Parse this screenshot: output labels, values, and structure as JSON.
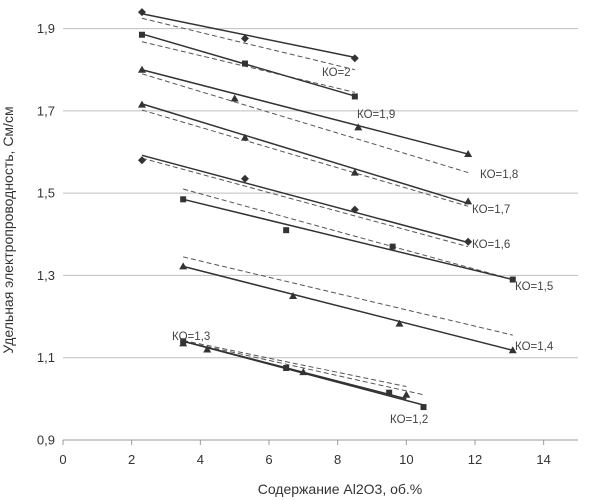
{
  "chart_data": {
    "type": "scatter",
    "xlabel": "Содержание Al2O3, об.%",
    "ylabel": "Удельная электропроводность, См/см",
    "xlim": [
      0,
      15
    ],
    "ylim": [
      0.9,
      1.95
    ],
    "xticks": [
      "0",
      "2",
      "4",
      "6",
      "8",
      "10",
      "12",
      "14"
    ],
    "yticks": [
      "0,9",
      "1,1",
      "1,3",
      "1,5",
      "1,7",
      "1,9"
    ],
    "grid": "horizontal",
    "colors": {
      "solid": "#333333",
      "dashed": "#555555",
      "grid": "#bfbfbf",
      "marker": "#333333"
    },
    "series": [
      {
        "name": "КО=2",
        "marker": "diamond",
        "x": [
          2.3,
          5.3,
          8.5
        ],
        "y": [
          1.94,
          1.876,
          1.828
        ],
        "fit_solid": [
          [
            2.3,
            1.936
          ],
          [
            8.5,
            1.83
          ]
        ],
        "fit_dashed": [
          [
            2.3,
            1.925
          ],
          [
            8.5,
            1.8
          ]
        ]
      },
      {
        "name": "КО=1,9",
        "marker": "square",
        "x": [
          2.3,
          5.3,
          8.5
        ],
        "y": [
          1.885,
          1.815,
          1.735
        ],
        "fit_solid": [
          [
            2.3,
            1.887
          ],
          [
            8.5,
            1.736
          ]
        ],
        "fit_dashed": [
          [
            2.3,
            1.868
          ],
          [
            8.5,
            1.745
          ]
        ]
      },
      {
        "name": "КО=1,8",
        "marker": "triangle",
        "x": [
          2.3,
          5.0,
          8.6,
          11.8
        ],
        "y": [
          1.8,
          1.73,
          1.66,
          1.595
        ],
        "fit_solid": [
          [
            2.3,
            1.8
          ],
          [
            11.8,
            1.595
          ]
        ],
        "fit_dashed": [
          [
            2.3,
            1.79
          ],
          [
            11.8,
            1.55
          ]
        ]
      },
      {
        "name": "КО=1,7",
        "marker": "triangle",
        "x": [
          2.3,
          5.3,
          8.5,
          11.8
        ],
        "y": [
          1.715,
          1.635,
          1.55,
          1.48
        ],
        "fit_solid": [
          [
            2.3,
            1.717
          ],
          [
            11.8,
            1.475
          ]
        ],
        "fit_dashed": [
          [
            2.3,
            1.702
          ],
          [
            11.8,
            1.468
          ]
        ]
      },
      {
        "name": "КО=1,6",
        "marker": "diamond",
        "x": [
          2.3,
          5.3,
          8.5,
          11.8
        ],
        "y": [
          1.58,
          1.535,
          1.46,
          1.382
        ],
        "fit_solid": [
          [
            2.3,
            1.592
          ],
          [
            11.8,
            1.38
          ]
        ],
        "fit_dashed": [
          [
            2.3,
            1.585
          ],
          [
            11.8,
            1.37
          ]
        ]
      },
      {
        "name": "КО=1,5",
        "marker": "square",
        "x": [
          3.5,
          6.5,
          9.6,
          13.1
        ],
        "y": [
          1.485,
          1.41,
          1.37,
          1.29
        ],
        "fit_solid": [
          [
            3.5,
            1.485
          ],
          [
            13.1,
            1.29
          ]
        ],
        "fit_dashed": [
          [
            3.5,
            1.51
          ],
          [
            13.1,
            1.29
          ]
        ]
      },
      {
        "name": "КО=1,4",
        "marker": "triangle",
        "x": [
          3.5,
          6.7,
          9.8,
          13.1
        ],
        "y": [
          1.322,
          1.25,
          1.183,
          1.118
        ],
        "fit_solid": [
          [
            3.5,
            1.322
          ],
          [
            13.1,
            1.118
          ]
        ],
        "fit_dashed": [
          [
            3.5,
            1.345
          ],
          [
            13.1,
            1.155
          ]
        ]
      },
      {
        "name": "КО=1,3",
        "marker": "triangle",
        "x": [
          3.5,
          4.2,
          7.0,
          10.0
        ],
        "y": [
          1.135,
          1.12,
          1.065,
          1.01
        ],
        "fit_solid": [
          [
            3.5,
            1.14
          ],
          [
            10.0,
            1.0
          ]
        ],
        "fit_dashed": [
          [
            3.5,
            1.142
          ],
          [
            10.0,
            1.03
          ]
        ]
      },
      {
        "name": "КО=1,2",
        "marker": "square",
        "x": [
          3.5,
          6.5,
          9.5,
          10.5
        ],
        "y": [
          1.14,
          1.075,
          1.015,
          0.98
        ],
        "fit_solid": [
          [
            3.5,
            1.14
          ],
          [
            10.5,
            0.985
          ]
        ],
        "fit_dashed": [
          [
            3.5,
            1.14
          ],
          [
            10.5,
            1.01
          ]
        ]
      }
    ]
  }
}
